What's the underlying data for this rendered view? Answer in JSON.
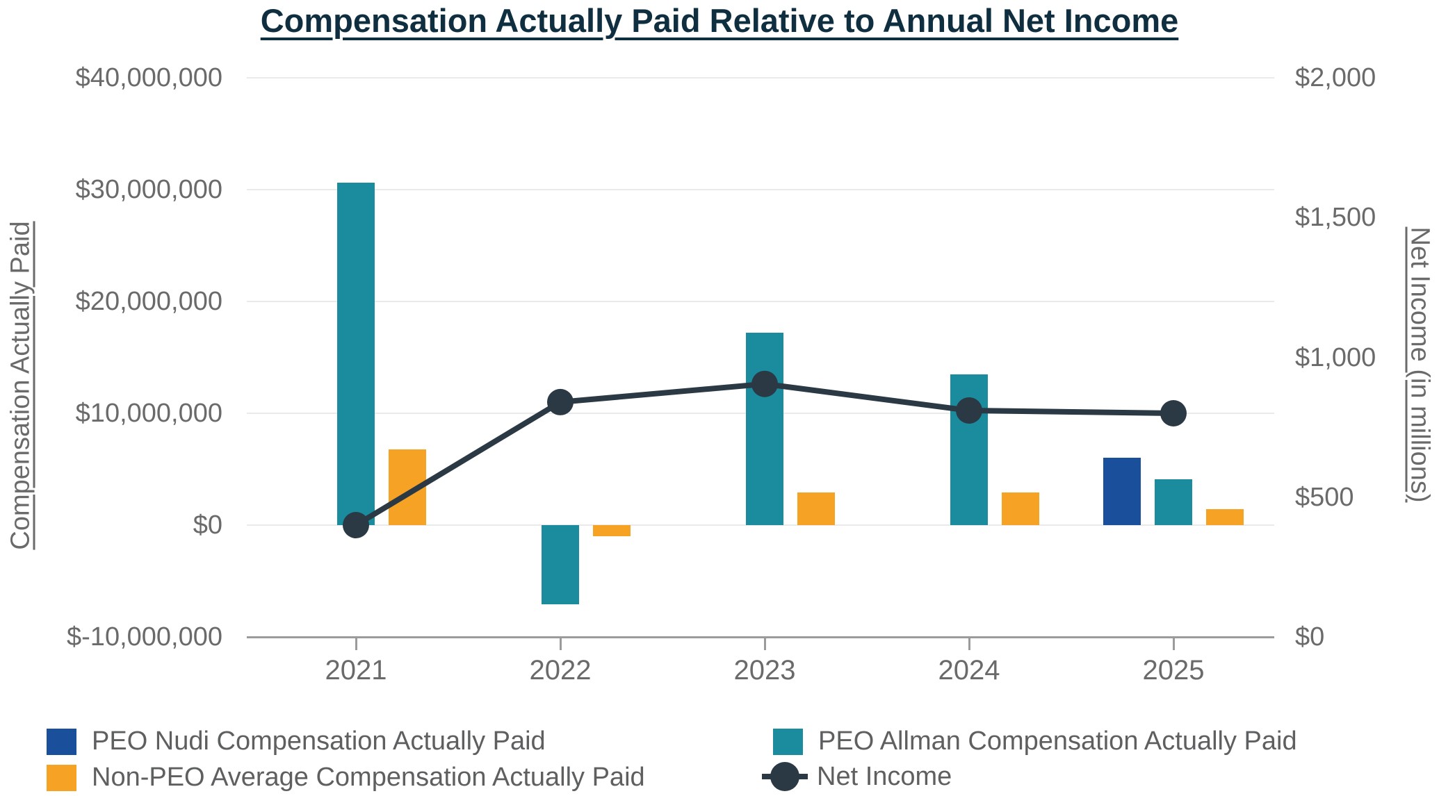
{
  "colors": {
    "navy": "#1A4F9B",
    "teal": "#1B8C9E",
    "orange": "#F6A224",
    "line": "#2B3945",
    "title": "#0F2F40",
    "grid": "#EAEAEA",
    "axis": "#9B9B9B",
    "tick_text": "#6A6A6A",
    "legend_text": "#5E5F61"
  },
  "chart_data": {
    "type": "bar+line combo, dual y-axis",
    "title": "Compensation Actually Paid Relative to Annual Net Income",
    "categories": [
      "2021",
      "2022",
      "2023",
      "2024",
      "2025"
    ],
    "series": [
      {
        "name": "PEO Nudi Compensation Actually Paid",
        "type": "bar",
        "axis": "left",
        "color_key": "navy",
        "values": [
          null,
          null,
          null,
          null,
          6000000
        ]
      },
      {
        "name": "PEO Allman Compensation Actually Paid",
        "type": "bar",
        "axis": "left",
        "color_key": "teal",
        "values": [
          30600000,
          -7100000,
          17200000,
          13500000,
          4100000
        ]
      },
      {
        "name": "Non-PEO Average Compensation Actually Paid",
        "type": "bar",
        "axis": "left",
        "color_key": "orange",
        "values": [
          6800000,
          -1000000,
          2900000,
          2900000,
          1400000
        ]
      },
      {
        "name": "Net Income",
        "type": "line",
        "axis": "right",
        "color_key": "line",
        "values": [
          400,
          840,
          905,
          810,
          800
        ]
      }
    ],
    "left_axis": {
      "label": "Compensation Actually Paid",
      "range": [
        -10000000,
        40000000
      ],
      "ticks": [
        {
          "label": "$40,000,000",
          "value": 40000000
        },
        {
          "label": "$30,000,000",
          "value": 30000000
        },
        {
          "label": "$20,000,000",
          "value": 20000000
        },
        {
          "label": "$10,000,000",
          "value": 10000000
        },
        {
          "label": "$0",
          "value": 0
        },
        {
          "label": "$-10,000,000",
          "value": -10000000
        }
      ]
    },
    "right_axis": {
      "label": "Net Income (in millions)",
      "range": [
        0,
        2000
      ],
      "ticks": [
        {
          "label": "$2,000",
          "value": 2000
        },
        {
          "label": "$1,500",
          "value": 1500
        },
        {
          "label": "$1,000",
          "value": 1000
        },
        {
          "label": "$500",
          "value": 500
        },
        {
          "label": "$0",
          "value": 0
        }
      ]
    },
    "x_axis": {
      "ticks": [
        "2021",
        "2022",
        "2023",
        "2024",
        "2025"
      ]
    },
    "grid": "horizontal gridlines only",
    "legend_position": "bottom, two columns"
  }
}
